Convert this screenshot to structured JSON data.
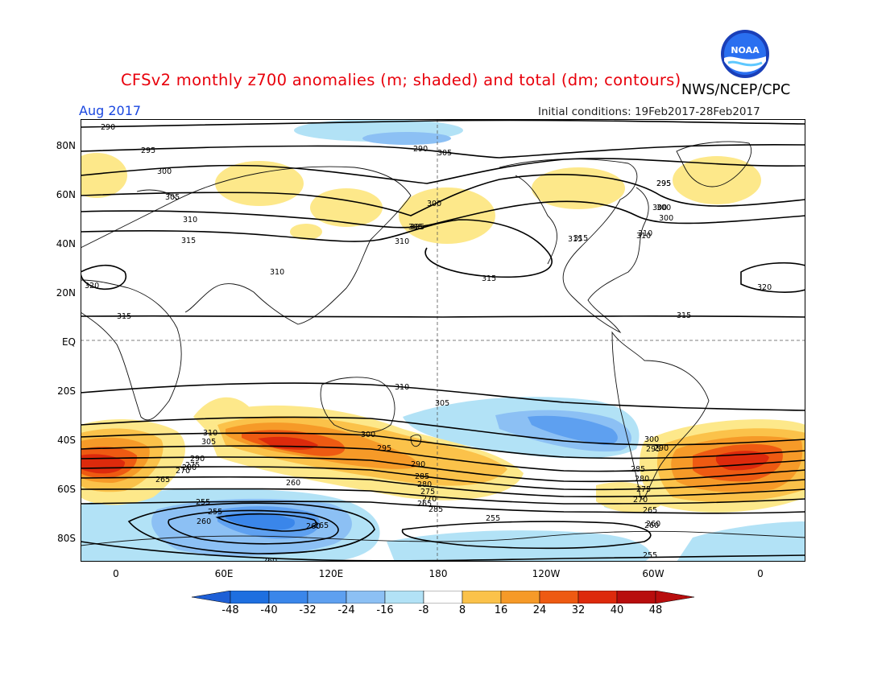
{
  "header": {
    "title": "CFSv2 monthly z700 anomalies (m; shaded) and total (dm; contours)",
    "title_color": "#e8000b",
    "agency": "NWS/NCEP/CPC",
    "valid_month": "Aug 2017",
    "valid_month_color": "#1a47e0",
    "initial_conditions": "Initial conditions: 19Feb2017-28Feb2017",
    "logo_text": "NOAA"
  },
  "map": {
    "projection": "cylindrical equidistant",
    "lon_range": [
      "20W",
      "20E"
    ],
    "lat_range": [
      "90S",
      "90N"
    ],
    "ylabels": [
      "80N",
      "60N",
      "40N",
      "20N",
      "EQ",
      "20S",
      "40S",
      "60S",
      "80S"
    ],
    "xlabels": [
      "0",
      "60E",
      "120E",
      "180",
      "120W",
      "60W",
      "0"
    ],
    "contour_labels": [
      "290",
      "290",
      "295",
      "295",
      "300",
      "300",
      "305",
      "305",
      "310",
      "310",
      "315",
      "315",
      "310",
      "320",
      "315",
      "315",
      "300",
      "305",
      "310",
      "300",
      "315",
      "295",
      "300",
      "305",
      "310",
      "315",
      "320",
      "310",
      "305",
      "300",
      "295",
      "290",
      "285",
      "280",
      "275",
      "270",
      "265",
      "260",
      "310",
      "305",
      "300",
      "295",
      "290",
      "285",
      "280",
      "275",
      "270",
      "265",
      "260",
      "255",
      "255",
      "260",
      "265",
      "270",
      "275",
      "280",
      "285",
      "290",
      "255",
      "260",
      "255",
      "260",
      "265",
      "260"
    ]
  },
  "colorbar": {
    "labels": [
      "-48",
      "-40",
      "-32",
      "-24",
      "-16",
      "-8",
      "8",
      "16",
      "24",
      "32",
      "40",
      "48"
    ],
    "colors": [
      "#1e6fe0",
      "#3a86ea",
      "#5ea0f0",
      "#8cc0f4",
      "#b2e2f6",
      "#ffffff",
      "#fde88a",
      "#fbc24a",
      "#f69a28",
      "#ee5a12",
      "#dd2a0c",
      "#b80d0d"
    ],
    "under_color": "#1e5fd6",
    "over_color": "#b80d0d"
  }
}
